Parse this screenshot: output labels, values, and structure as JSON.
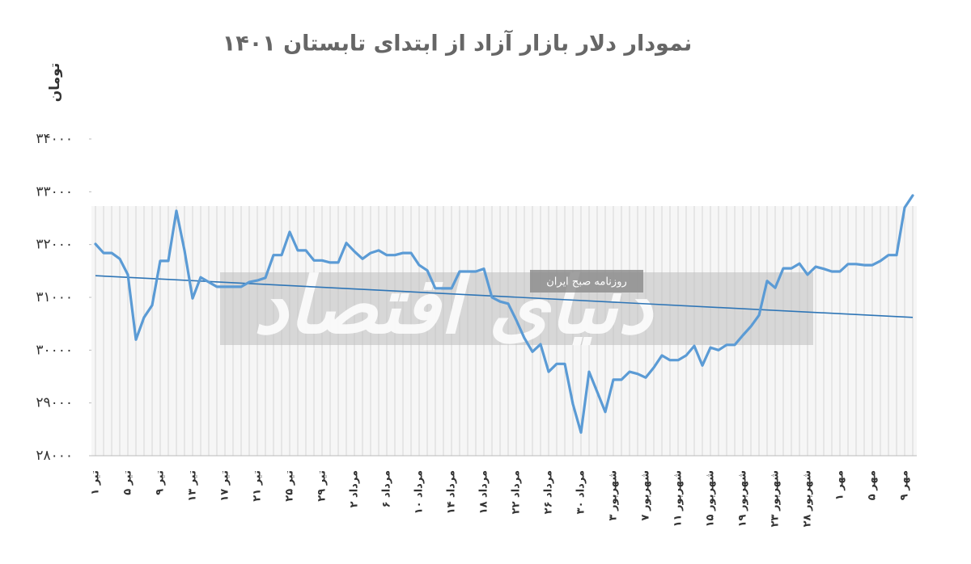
{
  "chart_data": {
    "type": "line",
    "title": "نمودار دلار بازار آزاد از ابتدای تابستان ۱۴۰۱",
    "y_label": "تومان",
    "watermark": "دنیای اقتصاد",
    "watermark_subtitle": "روزنامه صبح ایران",
    "ylim": [
      28000,
      34000
    ],
    "yticks": [
      {
        "value": 28000,
        "label": "۲۸۰۰۰"
      },
      {
        "value": 29000,
        "label": "۲۹۰۰۰"
      },
      {
        "value": 30000,
        "label": "۳۰۰۰۰"
      },
      {
        "value": 31000,
        "label": "۳۱۰۰۰"
      },
      {
        "value": 32000,
        "label": "۳۲۰۰۰"
      },
      {
        "value": 33000,
        "label": "۳۳۰۰۰"
      },
      {
        "value": 34000,
        "label": "۳۴۰۰۰"
      }
    ],
    "categories": [
      "تیر ۱",
      null,
      null,
      null,
      "تیر ۵",
      null,
      null,
      null,
      "تیر ۹",
      null,
      null,
      null,
      "تیر ۱۳",
      null,
      null,
      null,
      "تیر ۱۷",
      null,
      null,
      null,
      "تیر ۲۱",
      null,
      null,
      null,
      "تیر ۲۵",
      null,
      null,
      null,
      "تیر ۲۹",
      null,
      null,
      null,
      "مرداد ۲",
      null,
      null,
      null,
      "مرداد ۶",
      null,
      null,
      null,
      "مرداد ۱۰",
      null,
      null,
      null,
      "مرداد ۱۴",
      null,
      null,
      null,
      "مرداد ۱۸",
      null,
      null,
      null,
      "مرداد ۲۲",
      null,
      null,
      null,
      "مرداد ۲۶",
      null,
      null,
      null,
      "مرداد ۳۰",
      null,
      null,
      null,
      "شهریور ۳",
      null,
      null,
      null,
      "شهریور ۷",
      null,
      null,
      null,
      "شهریور ۱۱",
      null,
      null,
      null,
      "شهریور ۱۵",
      null,
      null,
      null,
      "شهریور ۱۹",
      null,
      null,
      null,
      "شهریور ۲۳",
      null,
      null,
      null,
      "شهریور ۲۸",
      null,
      null,
      null,
      "مهر ۱",
      null,
      null,
      null,
      "مهر ۵",
      null,
      null,
      null,
      "مهر ۹",
      null
    ],
    "series": [
      {
        "color": "#5b9bd5",
        "values": [
          32010,
          31840,
          31840,
          31730,
          31430,
          30200,
          30620,
          30850,
          31690,
          31690,
          32640,
          31890,
          30980,
          31380,
          31290,
          31200,
          31200,
          31200,
          31200,
          31290,
          31320,
          31370,
          31800,
          31800,
          32240,
          31890,
          31890,
          31700,
          31700,
          31660,
          31660,
          32030,
          31870,
          31730,
          31840,
          31890,
          31800,
          31800,
          31840,
          31840,
          31610,
          31510,
          31170,
          31170,
          31170,
          31490,
          31490,
          31490,
          31540,
          31000,
          30920,
          30880,
          30570,
          30230,
          29970,
          30110,
          29590,
          29740,
          29740,
          28980,
          28440,
          29590,
          29210,
          28830,
          29440,
          29440,
          29590,
          29550,
          29480,
          29670,
          29900,
          29810,
          29810,
          29900,
          30080,
          29710,
          30050,
          30000,
          30100,
          30100,
          30280,
          30450,
          30660,
          31310,
          31180,
          31550,
          31550,
          31640,
          31430,
          31580,
          31540,
          31490,
          31490,
          31630,
          31630,
          31610,
          31610,
          31690,
          31800,
          31800,
          32700,
          32930
        ]
      }
    ],
    "trend": {
      "color": "#2e75b6",
      "values": [
        31410,
        30620
      ]
    }
  }
}
